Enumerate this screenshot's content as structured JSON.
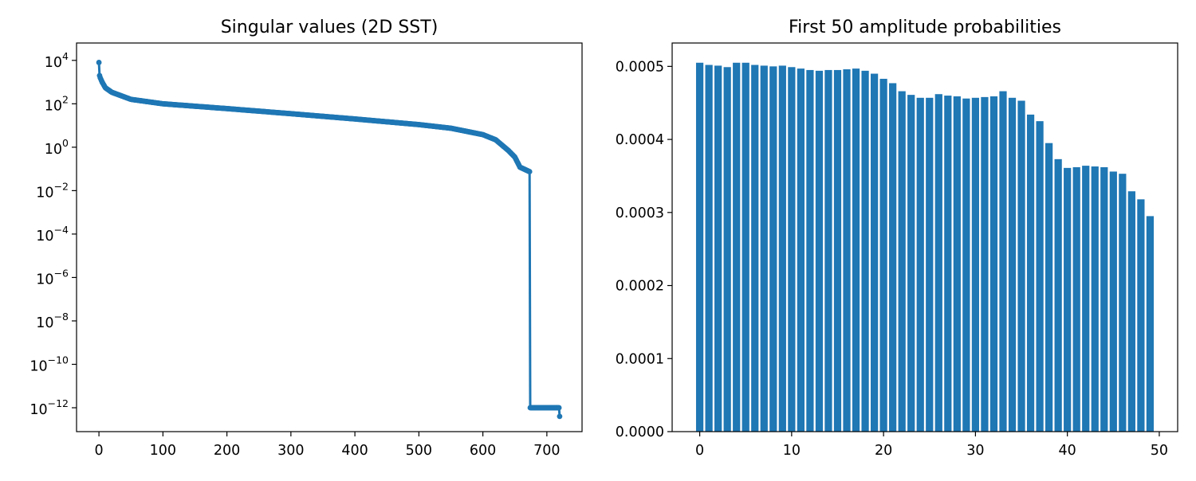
{
  "chart_data": [
    {
      "type": "line",
      "title": "Singular values (2D SST)",
      "xlabel": "",
      "ylabel": "",
      "yscale": "log",
      "xlim": [
        -35,
        755
      ],
      "ylim_log10": [
        -13.1,
        4.8
      ],
      "x_ticks": [
        0,
        100,
        200,
        300,
        400,
        500,
        600,
        700
      ],
      "y_ticks_log10": [
        4,
        2,
        0,
        -2,
        -4,
        -6,
        -8,
        -10,
        -12
      ],
      "y_tick_labels": [
        {
          "base": "10",
          "exp": "4"
        },
        {
          "base": "10",
          "exp": "2"
        },
        {
          "base": "10",
          "exp": "0"
        },
        {
          "base": "10",
          "exp": "−2"
        },
        {
          "base": "10",
          "exp": "−4"
        },
        {
          "base": "10",
          "exp": "−6"
        },
        {
          "base": "10",
          "exp": "−8"
        },
        {
          "base": "10",
          "exp": "−10"
        },
        {
          "base": "10",
          "exp": "−12"
        }
      ],
      "color": "#1f77b4",
      "marker": "circle",
      "n_points": 721,
      "anchors": [
        {
          "x": 0,
          "y": 8000
        },
        {
          "x": 1,
          "y": 2000
        },
        {
          "x": 2,
          "y": 1600
        },
        {
          "x": 5,
          "y": 1000
        },
        {
          "x": 10,
          "y": 550
        },
        {
          "x": 20,
          "y": 340
        },
        {
          "x": 50,
          "y": 160
        },
        {
          "x": 100,
          "y": 100
        },
        {
          "x": 200,
          "y": 60
        },
        {
          "x": 300,
          "y": 35
        },
        {
          "x": 400,
          "y": 20
        },
        {
          "x": 500,
          "y": 11
        },
        {
          "x": 550,
          "y": 7.5
        },
        {
          "x": 600,
          "y": 3.8
        },
        {
          "x": 620,
          "y": 2.2
        },
        {
          "x": 640,
          "y": 0.7
        },
        {
          "x": 650,
          "y": 0.35
        },
        {
          "x": 658,
          "y": 0.12
        },
        {
          "x": 673,
          "y": 0.075
        },
        {
          "x": 674,
          "y": 1e-12
        },
        {
          "x": 719,
          "y": 1e-12
        },
        {
          "x": 720,
          "y": 4e-13
        }
      ],
      "grid": false,
      "legend": "none"
    },
    {
      "type": "bar",
      "title": "First 50 amplitude probabilities",
      "xlabel": "",
      "ylabel": "",
      "xlim": [
        -3,
        52
      ],
      "ylim": [
        0,
        0.000532
      ],
      "x_ticks": [
        0,
        10,
        20,
        30,
        40,
        50
      ],
      "y_ticks": [
        0,
        0.0001,
        0.0002,
        0.0003,
        0.0004,
        0.0005
      ],
      "y_tick_labels": [
        "0.0000",
        "0.0001",
        "0.0002",
        "0.0003",
        "0.0004",
        "0.0005"
      ],
      "color": "#1f77b4",
      "categories": [
        0,
        1,
        2,
        3,
        4,
        5,
        6,
        7,
        8,
        9,
        10,
        11,
        12,
        13,
        14,
        15,
        16,
        17,
        18,
        19,
        20,
        21,
        22,
        23,
        24,
        25,
        26,
        27,
        28,
        29,
        30,
        31,
        32,
        33,
        34,
        35,
        36,
        37,
        38,
        39,
        40,
        41,
        42,
        43,
        44,
        45,
        46,
        47,
        48,
        49
      ],
      "values": [
        0.000505,
        0.000502,
        0.000501,
        0.000499,
        0.000505,
        0.000505,
        0.000502,
        0.000501,
        0.0005,
        0.000501,
        0.000499,
        0.000497,
        0.000495,
        0.000494,
        0.000495,
        0.000495,
        0.000496,
        0.000497,
        0.000494,
        0.00049,
        0.000483,
        0.000477,
        0.000466,
        0.000461,
        0.000457,
        0.000457,
        0.000462,
        0.00046,
        0.000459,
        0.000456,
        0.000457,
        0.000458,
        0.000459,
        0.000466,
        0.000457,
        0.000453,
        0.000434,
        0.000425,
        0.000395,
        0.000373,
        0.000361,
        0.000362,
        0.000364,
        0.000363,
        0.000362,
        0.000356,
        0.000353,
        0.000329,
        0.000318,
        0.000295
      ],
      "grid": false,
      "legend": "none"
    }
  ]
}
